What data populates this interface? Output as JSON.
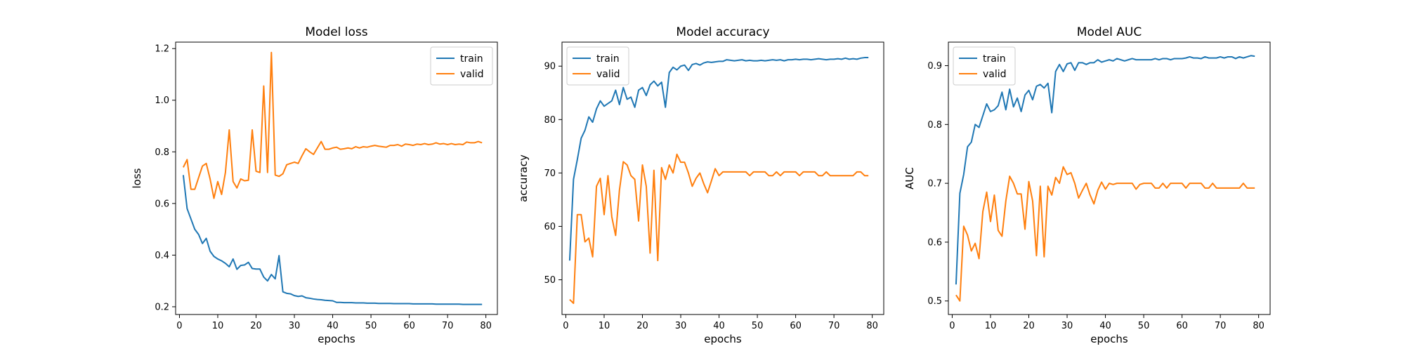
{
  "chart_data": [
    {
      "type": "line",
      "title": "Model loss",
      "xlabel": "epochs",
      "ylabel": "loss",
      "xlim": [
        -1,
        83
      ],
      "ylim": [
        0.17,
        1.225
      ],
      "xticks": [
        0,
        10,
        20,
        30,
        40,
        50,
        60,
        70,
        80
      ],
      "yticks": [
        0.2,
        0.4,
        0.6,
        0.8,
        1.0,
        1.2
      ],
      "ytick_labels": [
        "0.2",
        "0.4",
        "0.6",
        "0.8",
        "1.0",
        "1.2"
      ],
      "legend_position": "top-right",
      "grid": false,
      "series": [
        {
          "name": "train",
          "color": "#1f77b4",
          "x": [
            1,
            2,
            3,
            4,
            5,
            6,
            7,
            8,
            9,
            10,
            11,
            12,
            13,
            14,
            15,
            16,
            17,
            18,
            19,
            20,
            21,
            22,
            23,
            24,
            25,
            26,
            27,
            28,
            29,
            30,
            31,
            32,
            33,
            34,
            35,
            36,
            37,
            38,
            39,
            40,
            41,
            42,
            43,
            44,
            45,
            46,
            47,
            48,
            49,
            50,
            51,
            52,
            53,
            54,
            55,
            56,
            57,
            58,
            59,
            60,
            61,
            62,
            63,
            64,
            65,
            66,
            67,
            68,
            69,
            70,
            71,
            72,
            73,
            74,
            75,
            76,
            77,
            78,
            79
          ],
          "y": [
            0.71,
            0.58,
            0.54,
            0.5,
            0.48,
            0.445,
            0.465,
            0.415,
            0.395,
            0.385,
            0.378,
            0.368,
            0.355,
            0.385,
            0.345,
            0.36,
            0.362,
            0.372,
            0.348,
            0.346,
            0.346,
            0.315,
            0.3,
            0.325,
            0.308,
            0.398,
            0.258,
            0.252,
            0.25,
            0.243,
            0.24,
            0.242,
            0.235,
            0.233,
            0.23,
            0.228,
            0.227,
            0.225,
            0.224,
            0.223,
            0.217,
            0.217,
            0.216,
            0.216,
            0.216,
            0.215,
            0.215,
            0.215,
            0.214,
            0.214,
            0.214,
            0.213,
            0.213,
            0.213,
            0.213,
            0.212,
            0.212,
            0.212,
            0.212,
            0.212,
            0.211,
            0.211,
            0.211,
            0.211,
            0.211,
            0.211,
            0.21,
            0.21,
            0.21,
            0.21,
            0.21,
            0.21,
            0.21,
            0.209,
            0.209,
            0.209,
            0.209,
            0.209,
            0.209
          ]
        },
        {
          "name": "valid",
          "color": "#ff7f0e",
          "x": [
            1,
            2,
            3,
            4,
            5,
            6,
            7,
            8,
            9,
            10,
            11,
            12,
            13,
            14,
            15,
            16,
            17,
            18,
            19,
            20,
            21,
            22,
            23,
            24,
            25,
            26,
            27,
            28,
            29,
            30,
            31,
            32,
            33,
            34,
            35,
            36,
            37,
            38,
            39,
            40,
            41,
            42,
            43,
            44,
            45,
            46,
            47,
            48,
            49,
            50,
            51,
            52,
            53,
            54,
            55,
            56,
            57,
            58,
            59,
            60,
            61,
            62,
            63,
            64,
            65,
            66,
            67,
            68,
            69,
            70,
            71,
            72,
            73,
            74,
            75,
            76,
            77,
            78,
            79
          ],
          "y": [
            0.74,
            0.77,
            0.655,
            0.655,
            0.7,
            0.745,
            0.755,
            0.695,
            0.62,
            0.685,
            0.635,
            0.72,
            0.885,
            0.685,
            0.66,
            0.695,
            0.688,
            0.69,
            0.885,
            0.725,
            0.72,
            1.055,
            0.72,
            1.185,
            0.71,
            0.705,
            0.715,
            0.75,
            0.755,
            0.76,
            0.755,
            0.785,
            0.812,
            0.8,
            0.79,
            0.815,
            0.84,
            0.81,
            0.81,
            0.815,
            0.818,
            0.81,
            0.812,
            0.815,
            0.812,
            0.82,
            0.815,
            0.82,
            0.818,
            0.822,
            0.825,
            0.822,
            0.82,
            0.818,
            0.825,
            0.825,
            0.828,
            0.822,
            0.83,
            0.828,
            0.825,
            0.83,
            0.828,
            0.832,
            0.828,
            0.83,
            0.835,
            0.83,
            0.832,
            0.828,
            0.832,
            0.828,
            0.83,
            0.828,
            0.838,
            0.835,
            0.835,
            0.84,
            0.835
          ]
        }
      ]
    },
    {
      "type": "line",
      "title": "Model accuracy",
      "xlabel": "epochs",
      "ylabel": "accuracy",
      "xlim": [
        -1,
        83
      ],
      "ylim": [
        43.5,
        94.5
      ],
      "xticks": [
        0,
        10,
        20,
        30,
        40,
        50,
        60,
        70,
        80
      ],
      "yticks": [
        50,
        60,
        70,
        80,
        90
      ],
      "ytick_labels": [
        "50",
        "60",
        "70",
        "80",
        "90"
      ],
      "legend_position": "top-left",
      "grid": false,
      "series": [
        {
          "name": "train",
          "color": "#1f77b4",
          "x": [
            1,
            2,
            3,
            4,
            5,
            6,
            7,
            8,
            9,
            10,
            11,
            12,
            13,
            14,
            15,
            16,
            17,
            18,
            19,
            20,
            21,
            22,
            23,
            24,
            25,
            26,
            27,
            28,
            29,
            30,
            31,
            32,
            33,
            34,
            35,
            36,
            37,
            38,
            39,
            40,
            41,
            42,
            43,
            44,
            45,
            46,
            47,
            48,
            49,
            50,
            51,
            52,
            53,
            54,
            55,
            56,
            57,
            58,
            59,
            60,
            61,
            62,
            63,
            64,
            65,
            66,
            67,
            68,
            69,
            70,
            71,
            72,
            73,
            74,
            75,
            76,
            77,
            78,
            79
          ],
          "y": [
            53.6,
            68.8,
            72.5,
            76.5,
            78,
            80.5,
            79.5,
            82,
            83.5,
            82.5,
            83,
            83.5,
            85.5,
            82.8,
            86,
            83.8,
            84.2,
            82.3,
            85.5,
            86,
            84.5,
            86.5,
            87.2,
            86.3,
            87,
            82.3,
            88.8,
            89.8,
            89.3,
            90,
            90.2,
            89.2,
            90.3,
            90.5,
            90.2,
            90.6,
            90.8,
            90.7,
            90.8,
            90.9,
            90.9,
            91.2,
            91.1,
            91.0,
            91.1,
            91.2,
            91.0,
            91.1,
            91.0,
            91.0,
            91.1,
            91.0,
            91.1,
            91.2,
            91.1,
            91.2,
            91.0,
            91.2,
            91.2,
            91.3,
            91.2,
            91.3,
            91.3,
            91.2,
            91.3,
            91.4,
            91.3,
            91.2,
            91.3,
            91.3,
            91.4,
            91.3,
            91.5,
            91.3,
            91.4,
            91.3,
            91.5,
            91.6,
            91.6
          ]
        },
        {
          "name": "valid",
          "color": "#ff7f0e",
          "x": [
            1,
            2,
            3,
            4,
            5,
            6,
            7,
            8,
            9,
            10,
            11,
            12,
            13,
            14,
            15,
            16,
            17,
            18,
            19,
            20,
            21,
            22,
            23,
            24,
            25,
            26,
            27,
            28,
            29,
            30,
            31,
            32,
            33,
            34,
            35,
            36,
            37,
            38,
            39,
            40,
            41,
            42,
            43,
            44,
            45,
            46,
            47,
            48,
            49,
            50,
            51,
            52,
            53,
            54,
            55,
            56,
            57,
            58,
            59,
            60,
            61,
            62,
            63,
            64,
            65,
            66,
            67,
            68,
            69,
            70,
            71,
            72,
            73,
            74,
            75,
            76,
            77,
            78,
            79
          ],
          "y": [
            46.3,
            45.6,
            62.2,
            62.2,
            57.1,
            57.8,
            54.3,
            67.5,
            69,
            62.2,
            69.5,
            61.8,
            58.3,
            66.8,
            72.1,
            71.5,
            69.5,
            68.8,
            61,
            71.5,
            67.5,
            55,
            70.5,
            53.6,
            71,
            68.8,
            71.5,
            70,
            73.5,
            72,
            72,
            70,
            67.5,
            69,
            70,
            68,
            66.3,
            68.5,
            70.8,
            69.5,
            70.2,
            70.2,
            70.2,
            70.2,
            70.2,
            70.2,
            70.2,
            69.5,
            70.2,
            70.2,
            70.2,
            70.2,
            69.5,
            69.5,
            70.2,
            69.5,
            70.2,
            70.2,
            70.2,
            70.2,
            69.5,
            70.2,
            70.2,
            70.2,
            70.2,
            69.5,
            69.5,
            70.2,
            69.5,
            69.5,
            69.5,
            69.5,
            69.5,
            69.5,
            69.5,
            70.2,
            70.2,
            69.5,
            69.5
          ]
        }
      ]
    },
    {
      "type": "line",
      "title": "Model AUC",
      "xlabel": "epochs",
      "ylabel": "AUC",
      "xlim": [
        -1,
        83
      ],
      "ylim": [
        0.477,
        0.94
      ],
      "xticks": [
        0,
        10,
        20,
        30,
        40,
        50,
        60,
        70,
        80
      ],
      "yticks": [
        0.5,
        0.6,
        0.7,
        0.8,
        0.9
      ],
      "ytick_labels": [
        "0.5",
        "0.6",
        "0.7",
        "0.8",
        "0.9"
      ],
      "legend_position": "top-left",
      "grid": false,
      "series": [
        {
          "name": "train",
          "color": "#1f77b4",
          "x": [
            1,
            2,
            3,
            4,
            5,
            6,
            7,
            8,
            9,
            10,
            11,
            12,
            13,
            14,
            15,
            16,
            17,
            18,
            19,
            20,
            21,
            22,
            23,
            24,
            25,
            26,
            27,
            28,
            29,
            30,
            31,
            32,
            33,
            34,
            35,
            36,
            37,
            38,
            39,
            40,
            41,
            42,
            43,
            44,
            45,
            46,
            47,
            48,
            49,
            50,
            51,
            52,
            53,
            54,
            55,
            56,
            57,
            58,
            59,
            60,
            61,
            62,
            63,
            64,
            65,
            66,
            67,
            68,
            69,
            70,
            71,
            72,
            73,
            74,
            75,
            76,
            77,
            78,
            79
          ],
          "y": [
            0.528,
            0.683,
            0.715,
            0.762,
            0.77,
            0.8,
            0.795,
            0.815,
            0.835,
            0.822,
            0.825,
            0.832,
            0.855,
            0.825,
            0.86,
            0.83,
            0.845,
            0.822,
            0.85,
            0.858,
            0.842,
            0.865,
            0.868,
            0.862,
            0.87,
            0.82,
            0.89,
            0.902,
            0.89,
            0.903,
            0.905,
            0.892,
            0.905,
            0.905,
            0.902,
            0.905,
            0.905,
            0.91,
            0.906,
            0.908,
            0.91,
            0.908,
            0.912,
            0.91,
            0.908,
            0.91,
            0.912,
            0.91,
            0.91,
            0.91,
            0.91,
            0.91,
            0.912,
            0.91,
            0.912,
            0.912,
            0.91,
            0.912,
            0.912,
            0.912,
            0.913,
            0.915,
            0.913,
            0.913,
            0.912,
            0.915,
            0.913,
            0.913,
            0.913,
            0.915,
            0.913,
            0.915,
            0.915,
            0.912,
            0.915,
            0.913,
            0.915,
            0.917,
            0.916
          ]
        },
        {
          "name": "valid",
          "color": "#ff7f0e",
          "x": [
            1,
            2,
            3,
            4,
            5,
            6,
            7,
            8,
            9,
            10,
            11,
            12,
            13,
            14,
            15,
            16,
            17,
            18,
            19,
            20,
            21,
            22,
            23,
            24,
            25,
            26,
            27,
            28,
            29,
            30,
            31,
            32,
            33,
            34,
            35,
            36,
            37,
            38,
            39,
            40,
            41,
            42,
            43,
            44,
            45,
            46,
            47,
            48,
            49,
            50,
            51,
            52,
            53,
            54,
            55,
            56,
            57,
            58,
            59,
            60,
            61,
            62,
            63,
            64,
            65,
            66,
            67,
            68,
            69,
            70,
            71,
            72,
            73,
            74,
            75,
            76,
            77,
            78,
            79
          ],
          "y": [
            0.51,
            0.5,
            0.627,
            0.612,
            0.585,
            0.598,
            0.572,
            0.652,
            0.685,
            0.635,
            0.68,
            0.62,
            0.61,
            0.67,
            0.712,
            0.7,
            0.682,
            0.682,
            0.622,
            0.703,
            0.67,
            0.577,
            0.695,
            0.575,
            0.695,
            0.68,
            0.71,
            0.7,
            0.728,
            0.715,
            0.718,
            0.7,
            0.675,
            0.688,
            0.7,
            0.68,
            0.665,
            0.688,
            0.702,
            0.69,
            0.7,
            0.698,
            0.7,
            0.7,
            0.7,
            0.7,
            0.7,
            0.69,
            0.698,
            0.7,
            0.7,
            0.7,
            0.692,
            0.692,
            0.7,
            0.692,
            0.7,
            0.7,
            0.7,
            0.7,
            0.692,
            0.7,
            0.7,
            0.7,
            0.7,
            0.692,
            0.692,
            0.7,
            0.692,
            0.692,
            0.692,
            0.692,
            0.692,
            0.692,
            0.692,
            0.7,
            0.692,
            0.692,
            0.692
          ]
        }
      ]
    }
  ]
}
